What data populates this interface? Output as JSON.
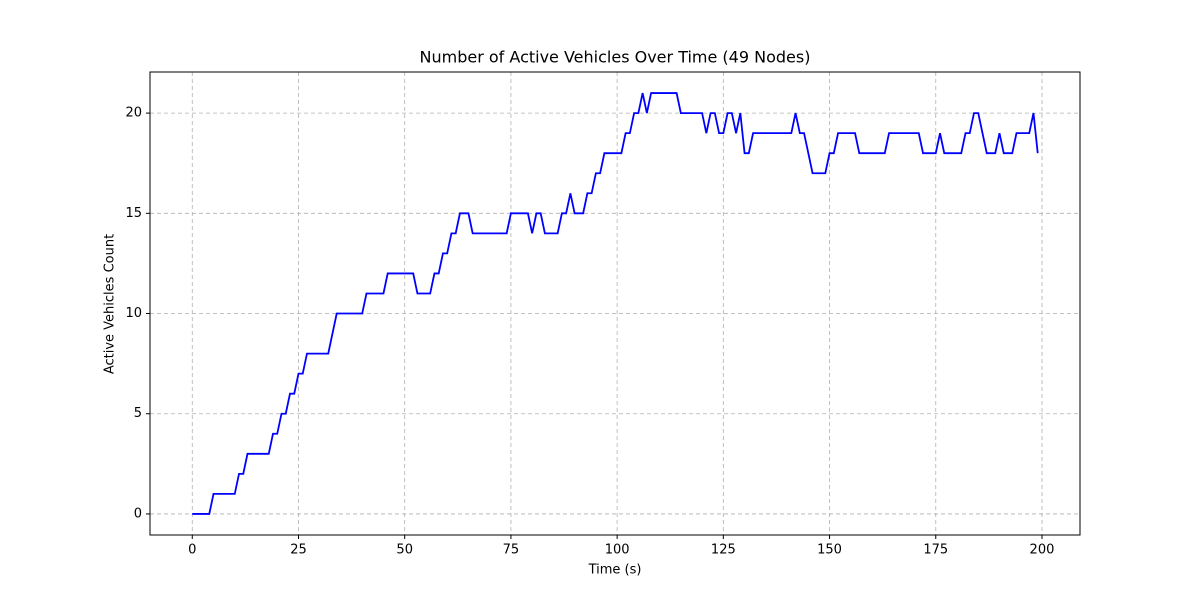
{
  "chart_data": {
    "type": "line",
    "title": "Number of Active Vehicles Over Time (49 Nodes)",
    "x_label": "Time (s)",
    "y_label": "Active Vehicles Count",
    "x": [
      0,
      1,
      2,
      3,
      4,
      5,
      6,
      7,
      8,
      9,
      10,
      11,
      12,
      13,
      14,
      15,
      16,
      17,
      18,
      19,
      20,
      21,
      22,
      23,
      24,
      25,
      26,
      27,
      28,
      29,
      30,
      31,
      32,
      33,
      34,
      35,
      36,
      37,
      38,
      39,
      40,
      41,
      42,
      43,
      44,
      45,
      46,
      47,
      48,
      49,
      50,
      51,
      52,
      53,
      54,
      55,
      56,
      57,
      58,
      59,
      60,
      61,
      62,
      63,
      64,
      65,
      66,
      67,
      68,
      69,
      70,
      71,
      72,
      73,
      74,
      75,
      76,
      77,
      78,
      79,
      80,
      81,
      82,
      83,
      84,
      85,
      86,
      87,
      88,
      89,
      90,
      91,
      92,
      93,
      94,
      95,
      96,
      97,
      98,
      99,
      100,
      101,
      102,
      103,
      104,
      105,
      106,
      107,
      108,
      109,
      110,
      111,
      112,
      113,
      114,
      115,
      116,
      117,
      118,
      119,
      120,
      121,
      122,
      123,
      124,
      125,
      126,
      127,
      128,
      129,
      130,
      131,
      132,
      133,
      134,
      135,
      136,
      137,
      138,
      139,
      140,
      141,
      142,
      143,
      144,
      145,
      146,
      147,
      148,
      149,
      150,
      151,
      152,
      153,
      154,
      155,
      156,
      157,
      158,
      159,
      160,
      161,
      162,
      163,
      164,
      165,
      166,
      167,
      168,
      169,
      170,
      171,
      172,
      173,
      174,
      175,
      176,
      177,
      178,
      179,
      180,
      181,
      182,
      183,
      184,
      185,
      186,
      187,
      188,
      189,
      190,
      191,
      192,
      193,
      194,
      195,
      196,
      197,
      198,
      199
    ],
    "series": [
      {
        "name": "Active Vehicles",
        "color": "#0000ff",
        "values": [
          0,
          0,
          0,
          0,
          0,
          1,
          1,
          1,
          1,
          1,
          1,
          2,
          2,
          3,
          3,
          3,
          3,
          3,
          3,
          4,
          4,
          5,
          5,
          6,
          6,
          7,
          7,
          8,
          8,
          8,
          8,
          8,
          8,
          9,
          10,
          10,
          10,
          10,
          10,
          10,
          10,
          11,
          11,
          11,
          11,
          11,
          12,
          12,
          12,
          12,
          12,
          12,
          12,
          11,
          11,
          11,
          11,
          12,
          12,
          13,
          13,
          14,
          14,
          15,
          15,
          15,
          14,
          14,
          14,
          14,
          14,
          14,
          14,
          14,
          14,
          15,
          15,
          15,
          15,
          15,
          14,
          15,
          15,
          14,
          14,
          14,
          14,
          15,
          15,
          16,
          15,
          15,
          15,
          16,
          16,
          17,
          17,
          18,
          18,
          18,
          18,
          18,
          19,
          19,
          20,
          20,
          21,
          20,
          21,
          21,
          21,
          21,
          21,
          21,
          21,
          20,
          20,
          20,
          20,
          20,
          20,
          19,
          20,
          20,
          19,
          19,
          20,
          20,
          19,
          20,
          18,
          18,
          19,
          19,
          19,
          19,
          19,
          19,
          19,
          19,
          19,
          19,
          20,
          19,
          19,
          18,
          17,
          17,
          17,
          17,
          18,
          18,
          19,
          19,
          19,
          19,
          19,
          18,
          18,
          18,
          18,
          18,
          18,
          18,
          19,
          19,
          19,
          19,
          19,
          19,
          19,
          19,
          18,
          18,
          18,
          18,
          19,
          18,
          18,
          18,
          18,
          18,
          19,
          19,
          20,
          20,
          19,
          18,
          18,
          18,
          19,
          18,
          18,
          18,
          19,
          19,
          19,
          19,
          20,
          18
        ]
      }
    ],
    "xlim": [
      -9.95,
      208.95
    ],
    "ylim": [
      -1.05,
      22.05
    ],
    "xticks": [
      0,
      25,
      50,
      75,
      100,
      125,
      150,
      175,
      200
    ],
    "yticks": [
      0,
      5,
      10,
      15,
      20
    ],
    "grid": true
  }
}
